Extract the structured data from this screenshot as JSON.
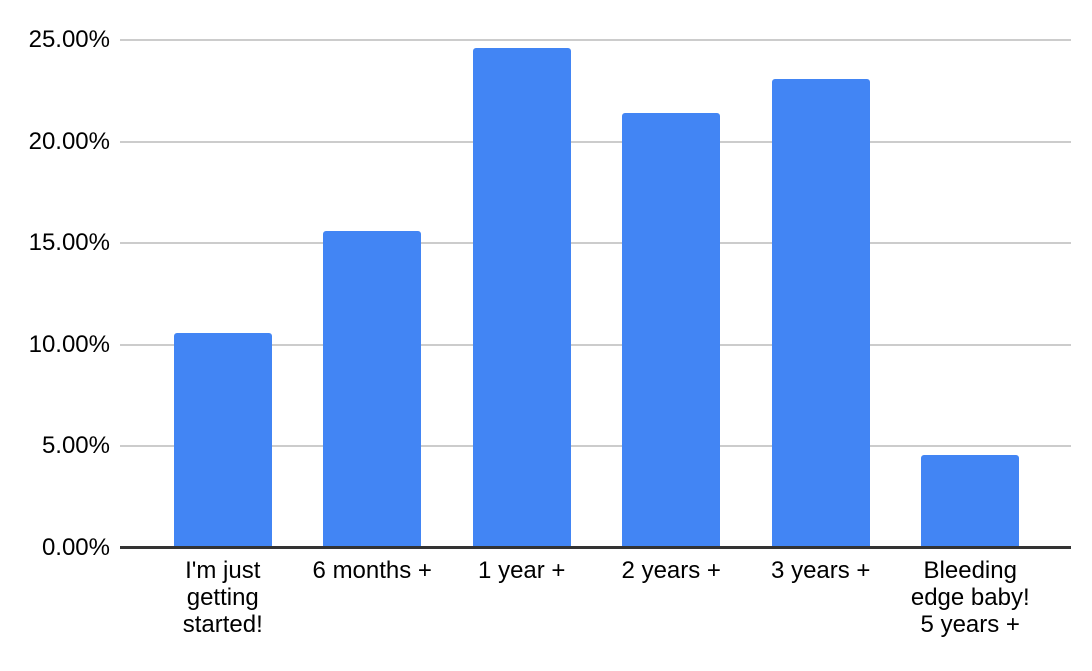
{
  "chart_data": {
    "type": "bar",
    "categories": [
      "I'm just\ngetting\nstarted!",
      "6 months +",
      "1 year +",
      "2 years +",
      "3 years +",
      "Bleeding\nedge baby!\n5 years +"
    ],
    "values": [
      10.6,
      15.6,
      24.6,
      21.4,
      23.1,
      4.6
    ],
    "value_unit": "percent",
    "ylim": [
      0,
      25
    ],
    "yticks": [
      0,
      5,
      10,
      15,
      20,
      25
    ],
    "ytick_labels": [
      "0.00%",
      "5.00%",
      "10.00%",
      "15.00%",
      "20.00%",
      "25.00%"
    ],
    "grid": true,
    "legend_visible": false,
    "series_name": ""
  },
  "colors": {
    "bar": "#4285f4",
    "gridline": "#cccccc",
    "baseline": "#333333",
    "text": "#000000",
    "background": "#ffffff"
  }
}
